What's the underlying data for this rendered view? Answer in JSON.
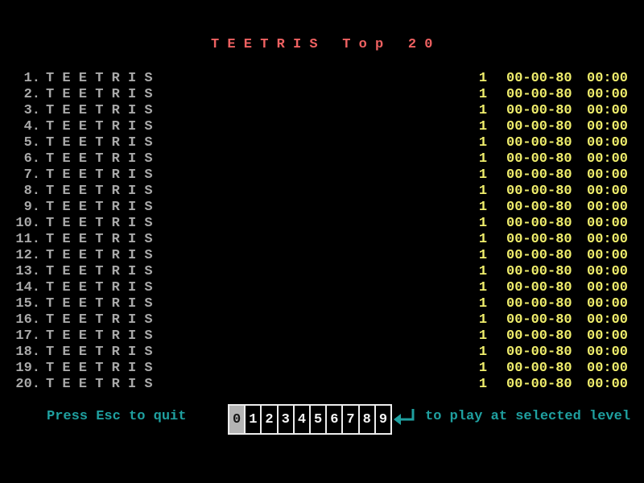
{
  "title": "T E E T R I S   T o p   2 0",
  "colors": {
    "title": "#ee6161",
    "entry": "#a9a9a9",
    "score": "#f0ee6c",
    "hint": "#1fa0a0",
    "frame": "#ededed",
    "digit": "#f5f5f5",
    "selected_bg": "#b4b4b4"
  },
  "rows": [
    {
      "rank": "1.",
      "name": "T E E T R I S",
      "level": "1",
      "date": "00-00-80",
      "time": "00:00"
    },
    {
      "rank": "2.",
      "name": "T E E T R I S",
      "level": "1",
      "date": "00-00-80",
      "time": "00:00"
    },
    {
      "rank": "3.",
      "name": "T E E T R I S",
      "level": "1",
      "date": "00-00-80",
      "time": "00:00"
    },
    {
      "rank": "4.",
      "name": "T E E T R I S",
      "level": "1",
      "date": "00-00-80",
      "time": "00:00"
    },
    {
      "rank": "5.",
      "name": "T E E T R I S",
      "level": "1",
      "date": "00-00-80",
      "time": "00:00"
    },
    {
      "rank": "6.",
      "name": "T E E T R I S",
      "level": "1",
      "date": "00-00-80",
      "time": "00:00"
    },
    {
      "rank": "7.",
      "name": "T E E T R I S",
      "level": "1",
      "date": "00-00-80",
      "time": "00:00"
    },
    {
      "rank": "8.",
      "name": "T E E T R I S",
      "level": "1",
      "date": "00-00-80",
      "time": "00:00"
    },
    {
      "rank": "9.",
      "name": "T E E T R I S",
      "level": "1",
      "date": "00-00-80",
      "time": "00:00"
    },
    {
      "rank": "10.",
      "name": "T E E T R I S",
      "level": "1",
      "date": "00-00-80",
      "time": "00:00"
    },
    {
      "rank": "11.",
      "name": "T E E T R I S",
      "level": "1",
      "date": "00-00-80",
      "time": "00:00"
    },
    {
      "rank": "12.",
      "name": "T E E T R I S",
      "level": "1",
      "date": "00-00-80",
      "time": "00:00"
    },
    {
      "rank": "13.",
      "name": "T E E T R I S",
      "level": "1",
      "date": "00-00-80",
      "time": "00:00"
    },
    {
      "rank": "14.",
      "name": "T E E T R I S",
      "level": "1",
      "date": "00-00-80",
      "time": "00:00"
    },
    {
      "rank": "15.",
      "name": "T E E T R I S",
      "level": "1",
      "date": "00-00-80",
      "time": "00:00"
    },
    {
      "rank": "16.",
      "name": "T E E T R I S",
      "level": "1",
      "date": "00-00-80",
      "time": "00:00"
    },
    {
      "rank": "17.",
      "name": "T E E T R I S",
      "level": "1",
      "date": "00-00-80",
      "time": "00:00"
    },
    {
      "rank": "18.",
      "name": "T E E T R I S",
      "level": "1",
      "date": "00-00-80",
      "time": "00:00"
    },
    {
      "rank": "19.",
      "name": "T E E T R I S",
      "level": "1",
      "date": "00-00-80",
      "time": "00:00"
    },
    {
      "rank": "20.",
      "name": "T E E T R I S",
      "level": "1",
      "date": "00-00-80",
      "time": "00:00"
    }
  ],
  "footer": {
    "quit_hint": "Press Esc to quit",
    "play_hint": "to play at selected level",
    "enter_icon": "return-arrow",
    "levels": [
      "0",
      "1",
      "2",
      "3",
      "4",
      "5",
      "6",
      "7",
      "8",
      "9"
    ],
    "selected_level": "0"
  }
}
